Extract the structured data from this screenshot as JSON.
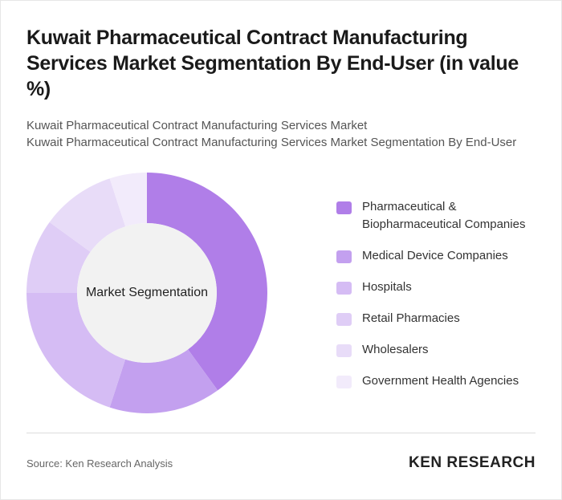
{
  "chart_data": {
    "type": "donut",
    "title": "Kuwait Pharmaceutical Contract Manufacturing Services Market Segmentation By End-User (in value %)",
    "subtitle": [
      "Kuwait Pharmaceutical Contract Manufacturing Services Market",
      "Kuwait Pharmaceutical Contract Manufacturing Services Market Segmentation By End-User"
    ],
    "center_label": "Market Segmentation",
    "categories": [
      "Pharmaceutical & Biopharmaceutical Companies",
      "Medical Device Companies",
      "Hospitals",
      "Retail Pharmacies",
      "Wholesalers",
      "Government Health Agencies"
    ],
    "values": [
      40,
      15,
      20,
      10,
      10,
      5
    ],
    "colors": [
      "#b07ee8",
      "#c3a0ef",
      "#d5bcf4",
      "#dfcdf6",
      "#e8dcf8",
      "#f2ebfb"
    ],
    "legend": "right"
  },
  "footer": {
    "source": "Source: Ken Research Analysis",
    "logo": "KEN RESEARCH"
  }
}
